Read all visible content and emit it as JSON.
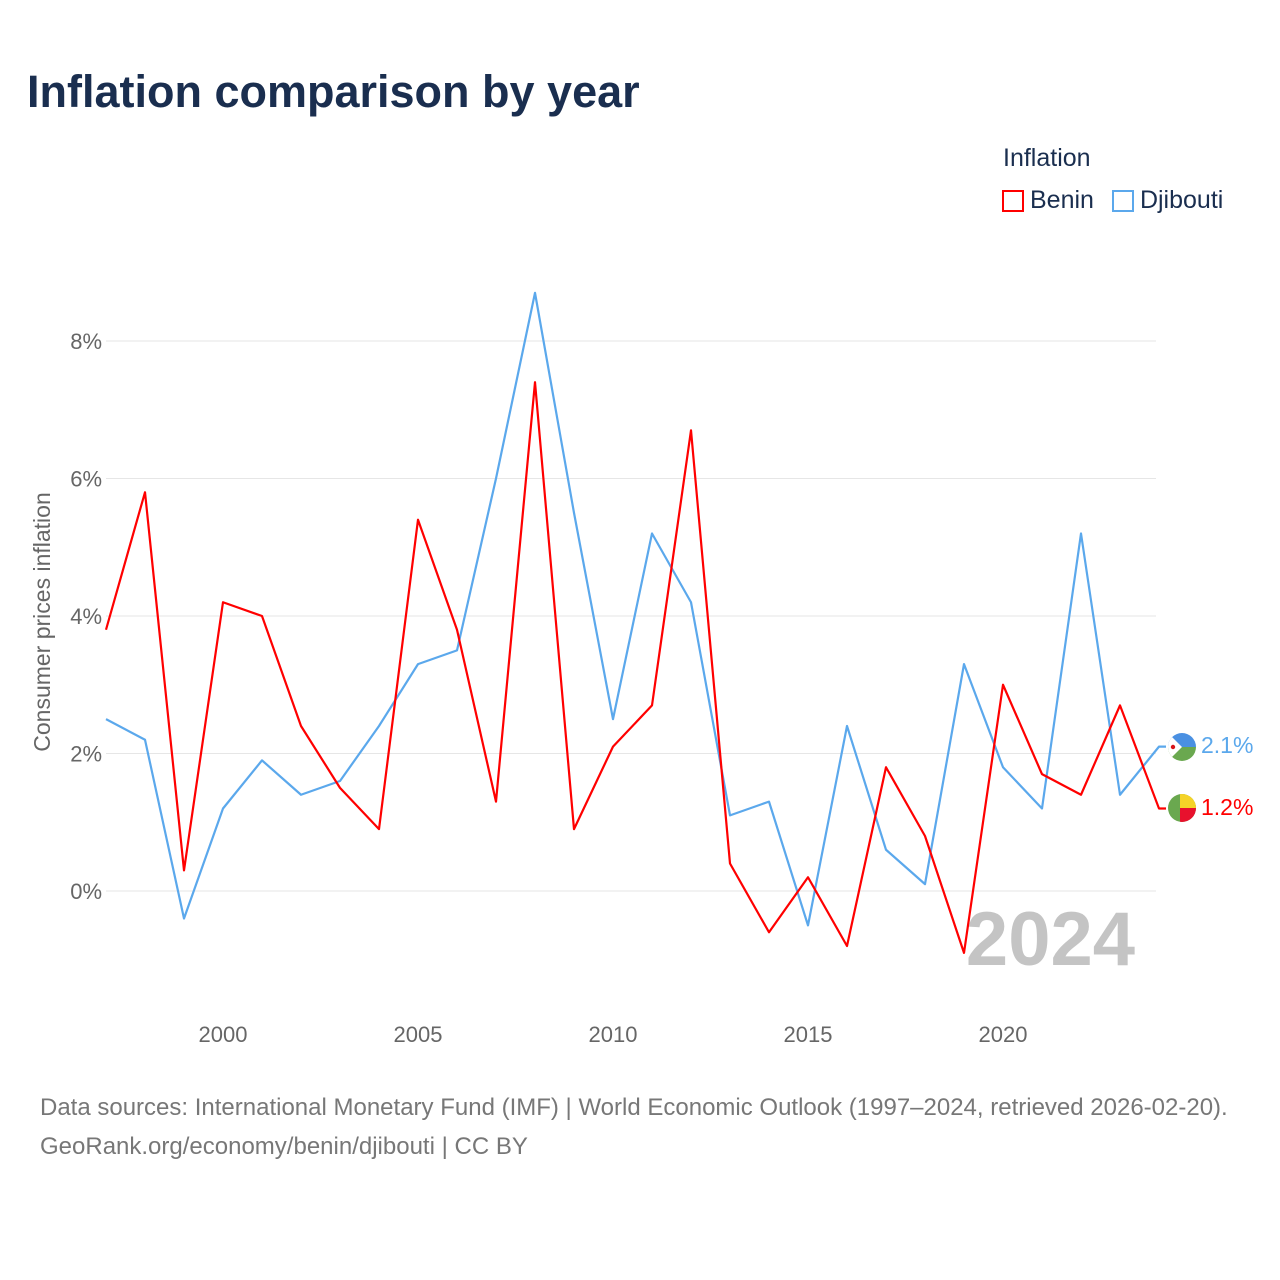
{
  "title": "Inflation comparison by year",
  "legend": {
    "title": "Inflation",
    "items": [
      {
        "label": "Benin",
        "color": "#ff0000"
      },
      {
        "label": "Djibouti",
        "color": "#5ba8ec"
      }
    ]
  },
  "chart_data": {
    "type": "line",
    "title": "Inflation comparison by year",
    "ylabel": "Consumer prices inflation",
    "xlabel": "",
    "x": [
      1997,
      1998,
      1999,
      2000,
      2001,
      2002,
      2003,
      2004,
      2005,
      2006,
      2007,
      2008,
      2009,
      2010,
      2011,
      2012,
      2013,
      2014,
      2015,
      2016,
      2017,
      2018,
      2019,
      2020,
      2021,
      2022,
      2023,
      2024
    ],
    "xticks": [
      "2000",
      "2005",
      "2010",
      "2015",
      "2020"
    ],
    "yticks": [
      "0%",
      "2%",
      "4%",
      "6%",
      "8%"
    ],
    "ylim": [
      -1.5,
      9.5
    ],
    "series": [
      {
        "name": "Benin",
        "color": "#ff0000",
        "end_label": "1.2%",
        "values": [
          3.8,
          5.8,
          0.3,
          4.2,
          4.0,
          2.4,
          1.5,
          0.9,
          5.4,
          3.8,
          1.3,
          7.4,
          0.9,
          2.1,
          2.7,
          6.7,
          0.4,
          -0.6,
          0.2,
          -0.8,
          1.8,
          0.8,
          -0.9,
          3.0,
          1.7,
          1.4,
          2.7,
          1.2
        ]
      },
      {
        "name": "Djibouti",
        "color": "#5ba8ec",
        "end_label": "2.1%",
        "values": [
          2.5,
          2.2,
          -0.4,
          1.2,
          1.9,
          1.4,
          1.6,
          2.4,
          3.3,
          3.5,
          6.0,
          8.7,
          5.5,
          2.5,
          5.2,
          4.2,
          1.1,
          1.3,
          -0.5,
          2.4,
          0.6,
          0.1,
          3.3,
          1.8,
          1.2,
          5.2,
          1.4,
          2.1
        ]
      }
    ],
    "watermark_year": "2024",
    "grid": true,
    "legend_position": "top-right"
  },
  "footer": {
    "sources": "Data sources: International Monetary Fund (IMF) | World Economic Outlook (1997–2024, retrieved 2026-02-20).",
    "link": "GeoRank.org/economy/benin/djibouti | CC BY"
  }
}
